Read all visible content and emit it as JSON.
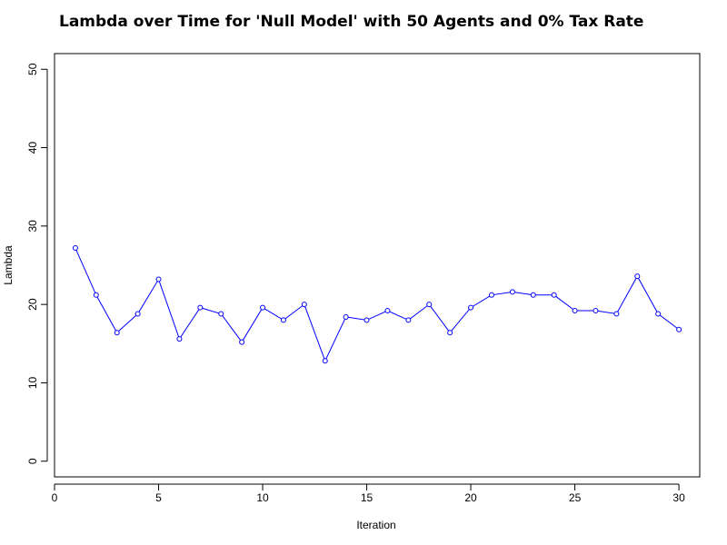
{
  "chart_data": {
    "type": "line",
    "title": "Lambda over Time for 'Null Model' with 50 Agents and 0% Tax Rate",
    "xlabel": "Iteration",
    "ylabel": "Lambda",
    "xlim": [
      0,
      31
    ],
    "ylim": [
      -2,
      52
    ],
    "x_ticks": [
      0,
      5,
      10,
      15,
      20,
      25,
      30
    ],
    "y_ticks": [
      0,
      10,
      20,
      30,
      40,
      50
    ],
    "grid": false,
    "legend": "none",
    "series": [
      {
        "color": "#0000ff",
        "marker": "open-circle",
        "x": [
          1,
          2,
          3,
          4,
          5,
          6,
          7,
          8,
          9,
          10,
          11,
          12,
          13,
          14,
          15,
          16,
          17,
          18,
          19,
          20,
          21,
          22,
          23,
          24,
          25,
          26,
          27,
          28,
          29,
          30
        ],
        "y": [
          27.2,
          21.2,
          16.4,
          18.8,
          23.2,
          15.6,
          19.6,
          18.8,
          15.2,
          19.6,
          18.0,
          20.0,
          12.8,
          18.4,
          18.0,
          19.2,
          18.0,
          20.0,
          16.4,
          19.6,
          21.2,
          21.6,
          21.2,
          21.2,
          19.2,
          19.2,
          18.8,
          23.6,
          18.8,
          16.8
        ]
      }
    ]
  }
}
